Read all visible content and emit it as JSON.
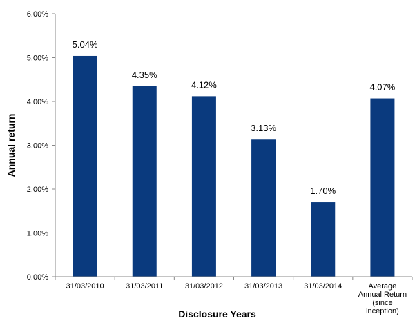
{
  "chart_data": {
    "type": "bar",
    "title": "",
    "xlabel": "Disclosure Years",
    "ylabel": "Annual return",
    "categories": [
      [
        "31/03/2010"
      ],
      [
        "31/03/2011"
      ],
      [
        "31/03/2012"
      ],
      [
        "31/03/2013"
      ],
      [
        "31/03/2014"
      ],
      [
        "Average",
        "Annual Return",
        "(since",
        "inception)"
      ]
    ],
    "values": [
      5.04,
      4.35,
      4.12,
      3.13,
      1.7,
      4.07
    ],
    "data_labels": [
      "5.04%",
      "4.35%",
      "4.12%",
      "3.13%",
      "1.70%",
      "4.07%"
    ],
    "ylim": [
      0,
      6
    ],
    "yticks": [
      "0.00%",
      "1.00%",
      "2.00%",
      "3.00%",
      "4.00%",
      "5.00%",
      "6.00%"
    ],
    "grid": false,
    "legend": "none",
    "bar_color": "#0a3a7e",
    "axis_color": "#888888"
  }
}
